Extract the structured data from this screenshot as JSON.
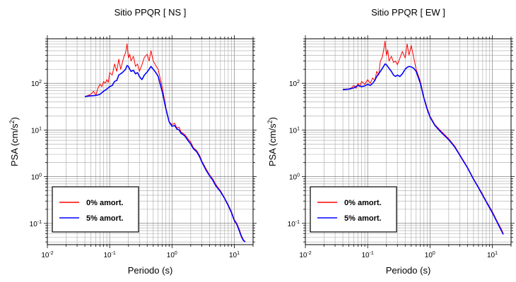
{
  "chart_data": [
    {
      "type": "line",
      "title": "Sitio PPQR [ NS ]",
      "xlabel": "Periodo (s)",
      "ylabel": {
        "base": "PSA (cm/s",
        "sup": "2",
        "tail": ")"
      },
      "x_scale": "log",
      "y_scale": "log",
      "xlim": [
        0.01,
        20
      ],
      "ylim": [
        0.035,
        900
      ],
      "x_ticks": [
        {
          "value": 0.01,
          "base": "10",
          "exp": "-2"
        },
        {
          "value": 0.1,
          "base": "10",
          "exp": "-1"
        },
        {
          "value": 1,
          "base": "10",
          "exp": "0"
        },
        {
          "value": 10,
          "base": "10",
          "exp": "1"
        }
      ],
      "y_ticks": [
        {
          "value": 0.1,
          "base": "10",
          "exp": "-1"
        },
        {
          "value": 1,
          "base": "10",
          "exp": "0"
        },
        {
          "value": 10,
          "base": "10",
          "exp": "1"
        },
        {
          "value": 100,
          "base": "10",
          "exp": "2"
        }
      ],
      "grid": true,
      "legend_position": "bottom-left",
      "series": [
        {
          "name": "0% amort.",
          "color": "#ff0000",
          "points": [
            [
              0.04,
              52
            ],
            [
              0.045,
              55
            ],
            [
              0.05,
              58
            ],
            [
              0.055,
              68
            ],
            [
              0.06,
              55
            ],
            [
              0.065,
              80
            ],
            [
              0.07,
              95
            ],
            [
              0.075,
              85
            ],
            [
              0.08,
              110
            ],
            [
              0.085,
              100
            ],
            [
              0.09,
              120
            ],
            [
              0.095,
              105
            ],
            [
              0.1,
              170
            ],
            [
              0.11,
              150
            ],
            [
              0.12,
              260
            ],
            [
              0.13,
              180
            ],
            [
              0.14,
              330
            ],
            [
              0.15,
              200
            ],
            [
              0.16,
              280
            ],
            [
              0.17,
              380
            ],
            [
              0.18,
              450
            ],
            [
              0.19,
              700
            ],
            [
              0.2,
              350
            ],
            [
              0.21,
              420
            ],
            [
              0.22,
              300
            ],
            [
              0.24,
              380
            ],
            [
              0.26,
              230
            ],
            [
              0.28,
              260
            ],
            [
              0.3,
              180
            ],
            [
              0.33,
              250
            ],
            [
              0.36,
              360
            ],
            [
              0.4,
              420
            ],
            [
              0.43,
              300
            ],
            [
              0.46,
              500
            ],
            [
              0.5,
              300
            ],
            [
              0.55,
              240
            ],
            [
              0.6,
              200
            ],
            [
              0.7,
              80
            ],
            [
              0.8,
              30
            ],
            [
              0.9,
              15
            ],
            [
              1,
              13
            ],
            [
              1.1,
              14
            ],
            [
              1.2,
              11
            ],
            [
              1.3,
              11.5
            ],
            [
              1.4,
              9
            ],
            [
              1.5,
              8.5
            ],
            [
              1.6,
              8
            ],
            [
              1.8,
              6.5
            ],
            [
              2,
              5.5
            ],
            [
              2.2,
              4.2
            ],
            [
              2.5,
              3.6
            ],
            [
              2.8,
              2.8
            ],
            [
              3,
              2.2
            ],
            [
              3.5,
              1.5
            ],
            [
              4,
              1.1
            ],
            [
              4.5,
              0.9
            ],
            [
              5,
              0.7
            ],
            [
              5.5,
              0.58
            ],
            [
              6,
              0.5
            ],
            [
              7,
              0.35
            ],
            [
              8,
              0.25
            ],
            [
              9,
              0.18
            ],
            [
              10,
              0.12
            ],
            [
              11,
              0.1
            ],
            [
              12,
              0.075
            ],
            [
              13,
              0.055
            ],
            [
              14,
              0.045
            ],
            [
              15,
              0.04
            ]
          ]
        },
        {
          "name": "5% amort.",
          "color": "#0000ff",
          "points": [
            [
              0.04,
              52
            ],
            [
              0.05,
              54
            ],
            [
              0.06,
              55
            ],
            [
              0.07,
              58
            ],
            [
              0.08,
              68
            ],
            [
              0.09,
              75
            ],
            [
              0.1,
              85
            ],
            [
              0.11,
              90
            ],
            [
              0.12,
              110
            ],
            [
              0.13,
              115
            ],
            [
              0.14,
              150
            ],
            [
              0.16,
              170
            ],
            [
              0.18,
              200
            ],
            [
              0.19,
              240
            ],
            [
              0.2,
              230
            ],
            [
              0.21,
              200
            ],
            [
              0.22,
              180
            ],
            [
              0.24,
              190
            ],
            [
              0.26,
              160
            ],
            [
              0.28,
              170
            ],
            [
              0.3,
              140
            ],
            [
              0.33,
              120
            ],
            [
              0.36,
              150
            ],
            [
              0.4,
              175
            ],
            [
              0.43,
              200
            ],
            [
              0.46,
              230
            ],
            [
              0.5,
              200
            ],
            [
              0.55,
              170
            ],
            [
              0.6,
              140
            ],
            [
              0.7,
              65
            ],
            [
              0.8,
              28
            ],
            [
              0.9,
              15
            ],
            [
              1,
              12
            ],
            [
              1.1,
              12.5
            ],
            [
              1.2,
              10.5
            ],
            [
              1.3,
              10
            ],
            [
              1.4,
              8.5
            ],
            [
              1.5,
              8
            ],
            [
              1.6,
              7.5
            ],
            [
              1.8,
              6
            ],
            [
              2,
              5
            ],
            [
              2.2,
              4
            ],
            [
              2.5,
              3.4
            ],
            [
              2.8,
              2.6
            ],
            [
              3,
              2.1
            ],
            [
              3.5,
              1.4
            ],
            [
              4,
              1.05
            ],
            [
              4.5,
              0.85
            ],
            [
              5,
              0.65
            ],
            [
              5.5,
              0.55
            ],
            [
              6,
              0.48
            ],
            [
              7,
              0.34
            ],
            [
              8,
              0.24
            ],
            [
              9,
              0.17
            ],
            [
              10,
              0.115
            ],
            [
              11,
              0.095
            ],
            [
              12,
              0.07
            ],
            [
              13,
              0.052
            ],
            [
              14,
              0.043
            ],
            [
              15,
              0.04
            ]
          ]
        }
      ]
    },
    {
      "type": "line",
      "title": "Sitio PPQR [ EW ]",
      "xlabel": "Periodo (s)",
      "ylabel": {
        "base": "PSA (cm/s",
        "sup": "2",
        "tail": ")"
      },
      "x_scale": "log",
      "y_scale": "log",
      "xlim": [
        0.01,
        20
      ],
      "ylim": [
        0.035,
        900
      ],
      "x_ticks": [
        {
          "value": 0.01,
          "base": "10",
          "exp": "-2"
        },
        {
          "value": 0.1,
          "base": "10",
          "exp": "-1"
        },
        {
          "value": 1,
          "base": "10",
          "exp": "0"
        },
        {
          "value": 10,
          "base": "10",
          "exp": "1"
        }
      ],
      "y_ticks": [
        {
          "value": 0.1,
          "base": "10",
          "exp": "-1"
        },
        {
          "value": 1,
          "base": "10",
          "exp": "0"
        },
        {
          "value": 10,
          "base": "10",
          "exp": "1"
        },
        {
          "value": 100,
          "base": "10",
          "exp": "2"
        }
      ],
      "grid": true,
      "legend_position": "bottom-left",
      "series": [
        {
          "name": "0% amort.",
          "color": "#ff0000",
          "points": [
            [
              0.04,
              75
            ],
            [
              0.05,
              76
            ],
            [
              0.055,
              80
            ],
            [
              0.06,
              90
            ],
            [
              0.065,
              78
            ],
            [
              0.07,
              100
            ],
            [
              0.075,
              85
            ],
            [
              0.08,
              110
            ],
            [
              0.09,
              95
            ],
            [
              0.1,
              120
            ],
            [
              0.11,
              100
            ],
            [
              0.12,
              130
            ],
            [
              0.13,
              115
            ],
            [
              0.14,
              180
            ],
            [
              0.15,
              150
            ],
            [
              0.16,
              300
            ],
            [
              0.17,
              350
            ],
            [
              0.18,
              500
            ],
            [
              0.19,
              800
            ],
            [
              0.2,
              400
            ],
            [
              0.21,
              520
            ],
            [
              0.22,
              300
            ],
            [
              0.24,
              380
            ],
            [
              0.26,
              280
            ],
            [
              0.28,
              300
            ],
            [
              0.3,
              250
            ],
            [
              0.33,
              350
            ],
            [
              0.36,
              480
            ],
            [
              0.4,
              350
            ],
            [
              0.43,
              700
            ],
            [
              0.46,
              400
            ],
            [
              0.5,
              650
            ],
            [
              0.55,
              350
            ],
            [
              0.6,
              200
            ],
            [
              0.7,
              110
            ],
            [
              0.8,
              50
            ],
            [
              0.9,
              30
            ],
            [
              1,
              20
            ],
            [
              1.2,
              13
            ],
            [
              1.5,
              9.5
            ],
            [
              2,
              6.5
            ],
            [
              2.5,
              4.5
            ],
            [
              3,
              3
            ],
            [
              4,
              1.6
            ],
            [
              5,
              0.9
            ],
            [
              6,
              0.6
            ],
            [
              7,
              0.42
            ],
            [
              8,
              0.3
            ],
            [
              10,
              0.18
            ],
            [
              12,
              0.11
            ],
            [
              14,
              0.075
            ],
            [
              15,
              0.06
            ]
          ]
        },
        {
          "name": "5% amort.",
          "color": "#0000ff",
          "points": [
            [
              0.04,
              73
            ],
            [
              0.05,
              75
            ],
            [
              0.06,
              80
            ],
            [
              0.07,
              90
            ],
            [
              0.08,
              85
            ],
            [
              0.09,
              88
            ],
            [
              0.1,
              95
            ],
            [
              0.11,
              90
            ],
            [
              0.12,
              100
            ],
            [
              0.13,
              115
            ],
            [
              0.14,
              140
            ],
            [
              0.16,
              180
            ],
            [
              0.18,
              230
            ],
            [
              0.19,
              260
            ],
            [
              0.2,
              250
            ],
            [
              0.22,
              210
            ],
            [
              0.24,
              180
            ],
            [
              0.26,
              150
            ],
            [
              0.28,
              140
            ],
            [
              0.3,
              150
            ],
            [
              0.33,
              140
            ],
            [
              0.36,
              160
            ],
            [
              0.4,
              200
            ],
            [
              0.43,
              220
            ],
            [
              0.46,
              230
            ],
            [
              0.5,
              225
            ],
            [
              0.55,
              210
            ],
            [
              0.6,
              180
            ],
            [
              0.7,
              100
            ],
            [
              0.8,
              48
            ],
            [
              0.9,
              28
            ],
            [
              1,
              19
            ],
            [
              1.2,
              12.5
            ],
            [
              1.5,
              9
            ],
            [
              2,
              6.2
            ],
            [
              2.5,
              4.3
            ],
            [
              3,
              2.9
            ],
            [
              4,
              1.55
            ],
            [
              5,
              0.88
            ],
            [
              6,
              0.58
            ],
            [
              7,
              0.4
            ],
            [
              8,
              0.29
            ],
            [
              10,
              0.17
            ],
            [
              12,
              0.105
            ],
            [
              14,
              0.07
            ],
            [
              15,
              0.058
            ]
          ]
        }
      ]
    }
  ]
}
